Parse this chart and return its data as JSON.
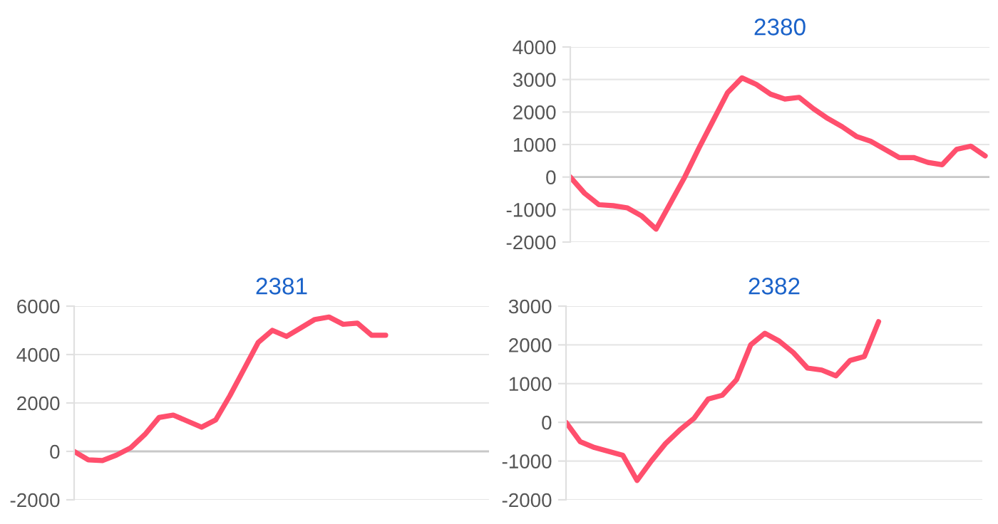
{
  "chart_data": [
    {
      "type": "line",
      "title": "2380",
      "categories": [
        null,
        null,
        null,
        null,
        null,
        null,
        null,
        null,
        null,
        null,
        null,
        null,
        null,
        null,
        null,
        null,
        null,
        null,
        null,
        null,
        null,
        null,
        null,
        null,
        null,
        null,
        null,
        null,
        null,
        null
      ],
      "series": [
        {
          "color": "#ff4f6d",
          "values": [
            0,
            -500,
            -850,
            -880,
            -950,
            -1200,
            -1600,
            -800,
            0,
            900,
            1750,
            2600,
            3050,
            2850,
            2550,
            2400,
            2450,
            2100,
            1800,
            1550,
            1250,
            1100,
            850,
            600,
            600,
            450,
            380,
            850,
            950,
            650
          ]
        }
      ],
      "ylim": [
        -2000,
        4000
      ],
      "yticks": [
        -2000,
        -1000,
        0,
        1000,
        2000,
        3000,
        4000
      ],
      "grid": "y",
      "tick_labels": "y"
    },
    {
      "type": "line",
      "title": "2381",
      "categories": [
        null,
        null,
        null,
        null,
        null,
        null,
        null,
        null,
        null,
        null,
        null,
        null,
        null,
        null,
        null,
        null,
        null,
        null,
        null,
        null,
        null,
        null,
        null,
        null,
        null,
        null,
        null,
        null,
        null,
        null
      ],
      "series": [
        {
          "color": "#ff4f6d",
          "values": [
            0,
            -350,
            -380,
            -150,
            150,
            700,
            1400,
            1500,
            1250,
            1000,
            1300,
            2300,
            3400,
            4500,
            5000,
            4750,
            5100,
            5450,
            5550,
            5250,
            5300,
            4800,
            4800,
            null,
            null,
            null,
            null,
            null,
            null,
            null
          ]
        }
      ],
      "ylim": [
        -2000,
        6000
      ],
      "yticks": [
        -2000,
        0,
        2000,
        4000,
        6000
      ],
      "grid": "y",
      "tick_labels": "y"
    },
    {
      "type": "line",
      "title": "2382",
      "categories": [
        null,
        null,
        null,
        null,
        null,
        null,
        null,
        null,
        null,
        null,
        null,
        null,
        null,
        null,
        null,
        null,
        null,
        null,
        null,
        null,
        null,
        null,
        null,
        null,
        null,
        null,
        null,
        null,
        null,
        null
      ],
      "series": [
        {
          "color": "#ff4f6d",
          "values": [
            0,
            -500,
            -650,
            -750,
            -850,
            -1500,
            -1000,
            -550,
            -200,
            100,
            600,
            700,
            1100,
            2000,
            2300,
            2100,
            1800,
            1400,
            1350,
            1200,
            1600,
            1700,
            2600,
            null,
            null,
            null,
            null,
            null,
            null,
            null
          ]
        }
      ],
      "ylim": [
        -2000,
        3000
      ],
      "yticks": [
        -2000,
        -1000,
        0,
        1000,
        2000,
        3000
      ],
      "grid": "y",
      "tick_labels": "y"
    }
  ]
}
